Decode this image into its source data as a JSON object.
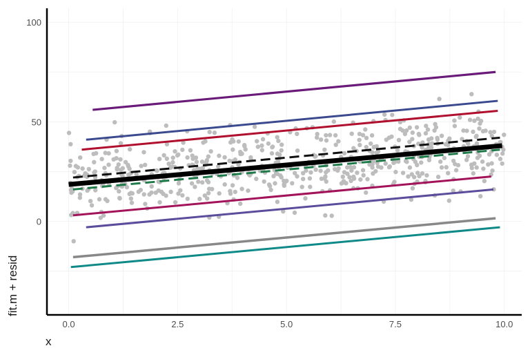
{
  "chart_data": {
    "type": "scatter",
    "title": "",
    "xlabel": "x",
    "ylabel": "fit.m + resid",
    "xlim": [
      -0.5,
      10.4
    ],
    "ylim": [
      -47,
      107
    ],
    "x_ticks": [
      0.0,
      2.5,
      5.0,
      7.5,
      10.0
    ],
    "x_tick_labels": [
      "0.0",
      "2.5",
      "5.0",
      "7.5",
      "10.0"
    ],
    "y_ticks": [
      0,
      50,
      100
    ],
    "y_tick_labels": [
      "0",
      "50",
      "100"
    ],
    "grid": true,
    "legend": "none",
    "point_color": "#bdbdbd",
    "points": {
      "description_free_sample": true,
      "n": 600,
      "x_range": [
        0.0,
        10.0
      ],
      "center_line": {
        "intercept": 18.5,
        "slope": 1.95
      },
      "spread_sd": 9.5
    },
    "lines": [
      {
        "x": [
          0.55,
          9.8
        ],
        "y": [
          56,
          75
        ],
        "color": "#6a1b7a",
        "width": 3.2,
        "dash": "solid"
      },
      {
        "x": [
          0.4,
          9.85
        ],
        "y": [
          41,
          60.5
        ],
        "color": "#3b4a8f",
        "width": 3,
        "dash": "solid"
      },
      {
        "x": [
          0.3,
          9.85
        ],
        "y": [
          36,
          55.5
        ],
        "color": "#b0102e",
        "width": 3,
        "dash": "solid"
      },
      {
        "x": [
          0.1,
          9.9
        ],
        "y": [
          22,
          42
        ],
        "color": "#111111",
        "width": 3,
        "dash": "dashed"
      },
      {
        "x": [
          0.0,
          9.95
        ],
        "y": [
          18.5,
          38
        ],
        "color": "#000000",
        "width": 7,
        "dash": "solid"
      },
      {
        "x": [
          0.1,
          9.9
        ],
        "y": [
          16,
          36
        ],
        "color": "#1f7a4a",
        "width": 3,
        "dash": "dashed"
      },
      {
        "x": [
          0.1,
          9.7
        ],
        "y": [
          3,
          22.5
        ],
        "color": "#a3135a",
        "width": 3,
        "dash": "solid"
      },
      {
        "x": [
          0.4,
          9.75
        ],
        "y": [
          -3,
          16
        ],
        "color": "#5b4c9c",
        "width": 3,
        "dash": "solid"
      },
      {
        "x": [
          0.1,
          9.8
        ],
        "y": [
          -18,
          1.5
        ],
        "color": "#888888",
        "width": 3.5,
        "dash": "solid"
      },
      {
        "x": [
          0.05,
          9.9
        ],
        "y": [
          -23,
          -3
        ],
        "color": "#0f8a88",
        "width": 3,
        "dash": "solid"
      }
    ]
  }
}
